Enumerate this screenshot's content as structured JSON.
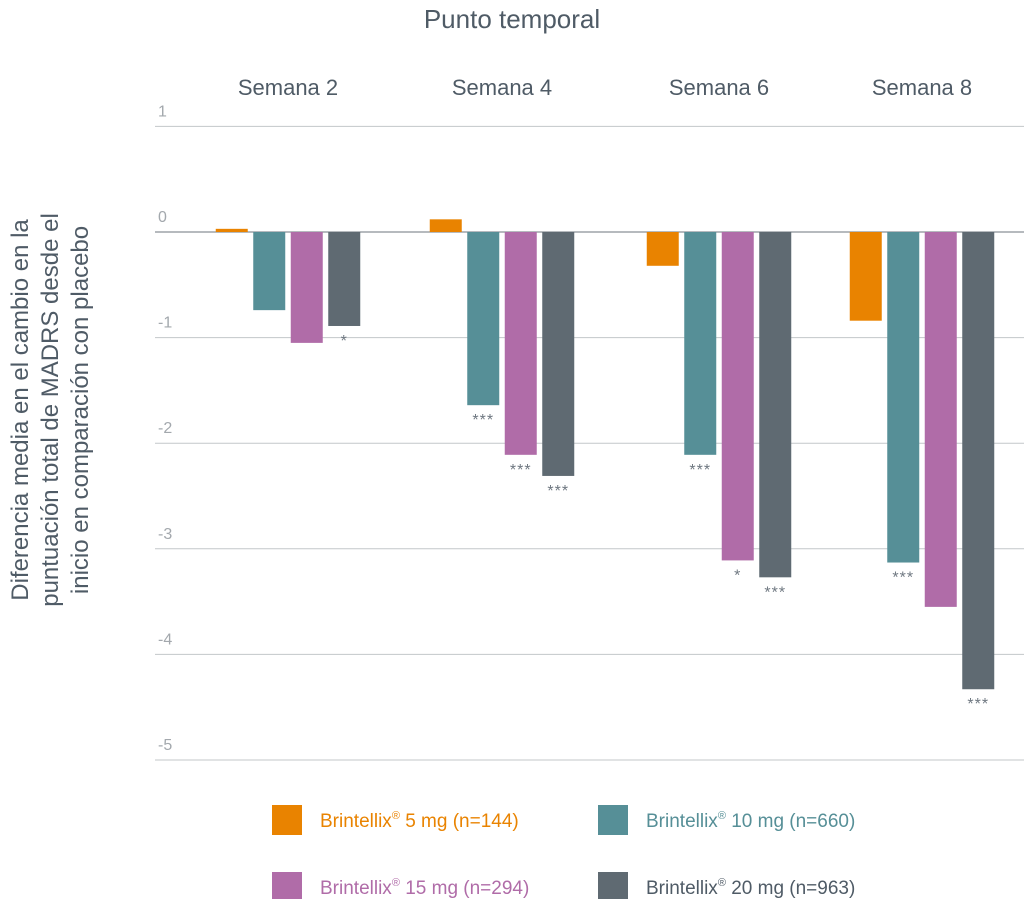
{
  "chart_data": {
    "type": "bar",
    "title": "Punto temporal",
    "xlabel": "",
    "ylabel_lines": [
      "Diferencia media en el cambio en la",
      "puntuación total de MADRS desde el",
      "inicio en comparación con placebo"
    ],
    "ylim": [
      -5,
      1
    ],
    "yticks": [
      1,
      0,
      -1,
      -2,
      -3,
      -4,
      -5
    ],
    "grid": true,
    "legend_position": "bottom",
    "categories": [
      "Semana 2",
      "Semana 4",
      "Semana 6",
      "Semana 8"
    ],
    "series": [
      {
        "name": "Brintellix® 5 mg (n=144)",
        "brand": "Brintellix",
        "label_rest": " 5 mg (n=144)",
        "color": "#e98300",
        "values": [
          0.03,
          0.12,
          -0.32,
          -0.84
        ],
        "significance": [
          "",
          "",
          "",
          ""
        ]
      },
      {
        "name": "Brintellix® 10 mg (n=660)",
        "brand": "Brintellix",
        "label_rest": " 10 mg (n=660)",
        "color": "#568f97",
        "values": [
          -0.74,
          -1.64,
          -2.11,
          -3.13
        ],
        "significance": [
          "",
          "***",
          "***",
          "***"
        ]
      },
      {
        "name": "Brintellix® 15 mg (n=294)",
        "brand": "Brintellix",
        "label_rest": " 15 mg (n=294)",
        "color": "#b06ca8",
        "values": [
          -1.05,
          -2.11,
          -3.11,
          -3.55
        ],
        "significance": [
          "",
          "***",
          "*",
          ""
        ]
      },
      {
        "name": "Brintellix® 20 mg (n=963)",
        "brand": "Brintellix",
        "label_rest": " 20 mg (n=963)",
        "color": "#5f6a72",
        "values": [
          -0.89,
          -2.31,
          -3.27,
          -4.33
        ],
        "significance": [
          "*",
          "***",
          "***",
          "***"
        ]
      }
    ]
  }
}
